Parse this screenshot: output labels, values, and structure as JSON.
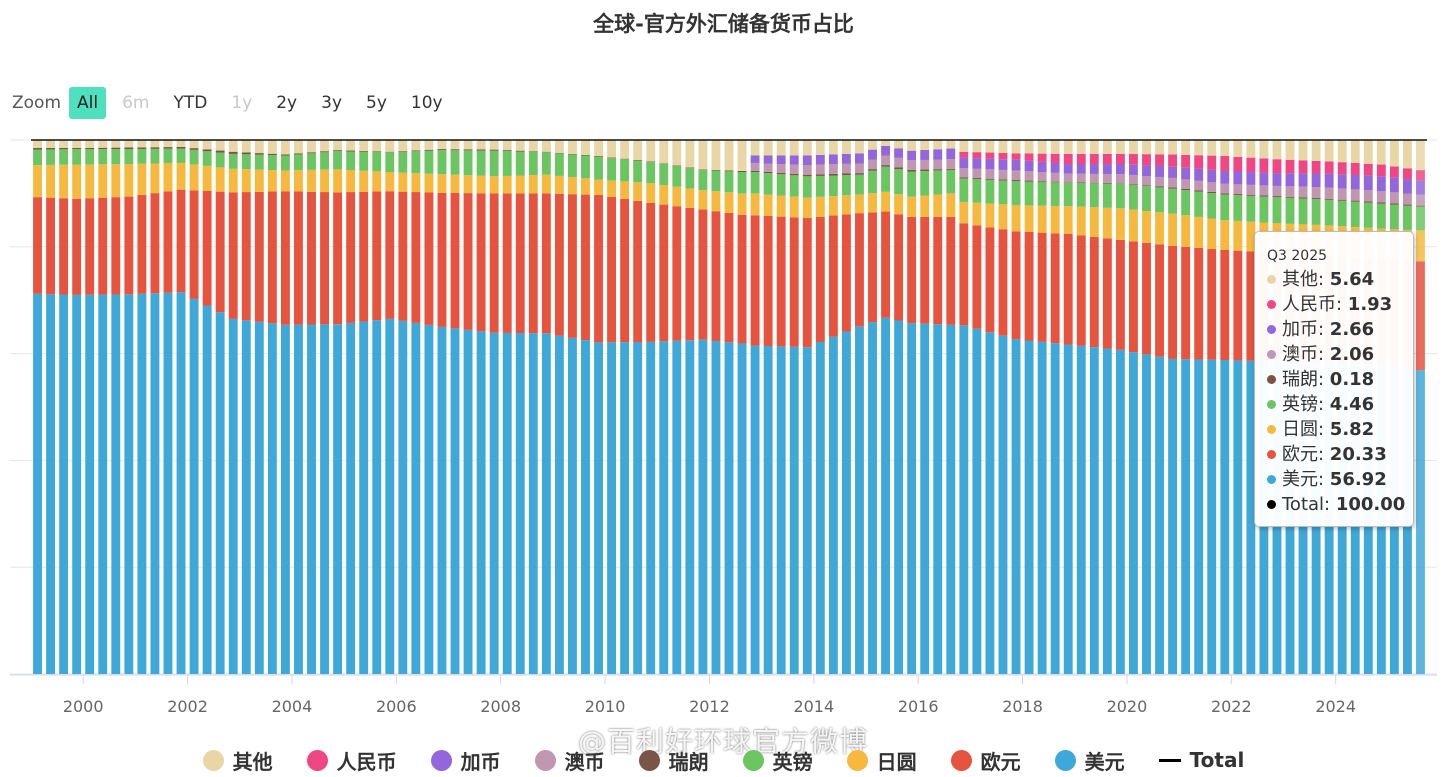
{
  "zoom": {
    "label": "Zoom",
    "buttons": [
      {
        "label": "All",
        "state": "active"
      },
      {
        "label": "6m",
        "state": "disabled"
      },
      {
        "label": "YTD",
        "state": "normal"
      },
      {
        "label": "1y",
        "state": "disabled"
      },
      {
        "label": "2y",
        "state": "normal"
      },
      {
        "label": "3y",
        "state": "normal"
      },
      {
        "label": "5y",
        "state": "normal"
      },
      {
        "label": "10y",
        "state": "normal"
      }
    ]
  },
  "tooltip": {
    "header": "Q3 2025",
    "rows": [
      {
        "name": "其他",
        "value": "5.64",
        "color": "#e8d6a6"
      },
      {
        "name": "人民币",
        "value": "1.93",
        "color": "#ee4783"
      },
      {
        "name": "加币",
        "value": "2.66",
        "color": "#9466db"
      },
      {
        "name": "澳币",
        "value": "2.06",
        "color": "#c096b0"
      },
      {
        "name": "瑞朗",
        "value": "0.18",
        "color": "#7a5446"
      },
      {
        "name": "英镑",
        "value": "4.46",
        "color": "#6bc662"
      },
      {
        "name": "日圆",
        "value": "5.82",
        "color": "#f6b93e"
      },
      {
        "name": "欧元",
        "value": "20.33",
        "color": "#e6533e"
      },
      {
        "name": "美元",
        "value": "56.92",
        "color": "#3ea8d8"
      },
      {
        "name": "Total",
        "value": "100.00",
        "color": "#000000"
      }
    ]
  },
  "legend": [
    {
      "name": "其他",
      "color": "#e8d6a6",
      "kind": "dot"
    },
    {
      "name": "人民币",
      "color": "#ee4783",
      "kind": "dot"
    },
    {
      "name": "加币",
      "color": "#9466db",
      "kind": "dot"
    },
    {
      "name": "澳币",
      "color": "#c096b0",
      "kind": "dot"
    },
    {
      "name": "瑞朗",
      "color": "#7a5446",
      "kind": "dot"
    },
    {
      "name": "英镑",
      "color": "#6bc662",
      "kind": "dot"
    },
    {
      "name": "日圆",
      "color": "#f6b93e",
      "kind": "dot"
    },
    {
      "name": "欧元",
      "color": "#e6533e",
      "kind": "dot"
    },
    {
      "name": "美元",
      "color": "#3ea8d8",
      "kind": "dot"
    },
    {
      "name": "Total",
      "color": "#000000",
      "kind": "line"
    }
  ],
  "watermark": "@百利好环球官方微博",
  "chart_data": {
    "type": "bar",
    "stacked": true,
    "title": "全球-官方外汇储备货币占比",
    "xlabel": "",
    "ylabel": "",
    "ylim": [
      0,
      100
    ],
    "x_range": [
      "Q1 1999",
      "Q3 2025"
    ],
    "x_ticks": [
      "2000",
      "2002",
      "2004",
      "2006",
      "2008",
      "2010",
      "2012",
      "2014",
      "2016",
      "2018",
      "2020",
      "2022",
      "2024"
    ],
    "grid": true,
    "legend_position": "bottom",
    "highlighted_point": "Q3 2025",
    "total_series": {
      "name": "Total",
      "value": 100
    },
    "series_order_bottom_to_top": [
      "美元",
      "欧元",
      "日圆",
      "英镑",
      "瑞朗",
      "澳币",
      "加币",
      "人民币",
      "其他"
    ],
    "series_colors": {
      "美元": "#3ea8d8",
      "欧元": "#e6533e",
      "日圆": "#f6b93e",
      "英镑": "#6bc662",
      "瑞朗": "#7a5446",
      "澳币": "#c096b0",
      "加币": "#9466db",
      "人民币": "#ee4783",
      "其他": "#e8d6a6"
    },
    "keyframes": [
      {
        "t": "Q1 1999",
        "美元": 71.2,
        "欧元": 18.1,
        "日圆": 6.0,
        "英镑": 2.9,
        "瑞朗": 0.3,
        "澳币": 0,
        "加币": 0,
        "人民币": 0,
        "其他": 1.5
      },
      {
        "t": "Q4 1999",
        "美元": 71.0,
        "欧元": 18.0,
        "日圆": 6.4,
        "英镑": 2.9,
        "瑞朗": 0.2,
        "澳币": 0,
        "加币": 0,
        "人民币": 0,
        "其他": 1.5
      },
      {
        "t": "Q4 2000",
        "美元": 71.1,
        "欧元": 18.3,
        "日圆": 6.1,
        "英镑": 2.8,
        "瑞朗": 0.3,
        "澳币": 0,
        "加币": 0,
        "人民币": 0,
        "其他": 1.4
      },
      {
        "t": "Q4 2001",
        "美元": 71.5,
        "欧元": 19.2,
        "日圆": 5.0,
        "英镑": 2.7,
        "瑞朗": 0.3,
        "澳币": 0,
        "加币": 0,
        "人民币": 0,
        "其他": 1.3
      },
      {
        "t": "Q4 2002",
        "美元": 66.5,
        "欧元": 23.7,
        "日圆": 4.4,
        "英镑": 2.8,
        "瑞朗": 0.4,
        "澳币": 0,
        "加币": 0,
        "人民币": 0,
        "其他": 2.2
      },
      {
        "t": "Q4 2003",
        "美元": 65.4,
        "欧元": 25.0,
        "日圆": 3.9,
        "英镑": 2.8,
        "瑞朗": 0.2,
        "澳币": 0,
        "加币": 0,
        "人民币": 0,
        "其他": 2.7
      },
      {
        "t": "Q4 2004",
        "美元": 65.5,
        "欧元": 24.7,
        "日圆": 4.3,
        "英镑": 3.4,
        "瑞朗": 0.2,
        "澳币": 0,
        "加币": 0,
        "人民币": 0,
        "其他": 1.9
      },
      {
        "t": "Q4 2005",
        "美元": 66.5,
        "欧元": 23.9,
        "日圆": 3.6,
        "英镑": 3.7,
        "瑞朗": 0.1,
        "澳币": 0,
        "加币": 0,
        "人民币": 0,
        "其他": 2.2
      },
      {
        "t": "Q4 2006",
        "美元": 65.0,
        "欧元": 25.1,
        "日圆": 3.5,
        "英镑": 4.5,
        "瑞朗": 0.2,
        "澳币": 0,
        "加币": 0,
        "人民币": 0,
        "其他": 1.7
      },
      {
        "t": "Q4 2007",
        "美元": 63.9,
        "欧元": 26.1,
        "日圆": 3.2,
        "英镑": 4.8,
        "瑞朗": 0.2,
        "澳币": 0,
        "加币": 0,
        "人民币": 0,
        "其他": 1.8
      },
      {
        "t": "Q4 2008",
        "美元": 63.8,
        "欧元": 26.2,
        "日圆": 3.5,
        "英镑": 4.2,
        "瑞朗": 0.1,
        "澳币": 0,
        "加币": 0,
        "人民币": 0,
        "其他": 2.2
      },
      {
        "t": "Q4 2009",
        "美元": 62.1,
        "欧元": 27.6,
        "日圆": 2.9,
        "英镑": 4.3,
        "瑞朗": 0.1,
        "澳币": 0,
        "加币": 0,
        "人民币": 0,
        "其他": 3.0
      },
      {
        "t": "Q4 2010",
        "美元": 62.2,
        "欧元": 26.0,
        "日圆": 3.7,
        "英镑": 4.0,
        "瑞朗": 0.1,
        "澳币": 0,
        "加币": 0,
        "人民币": 0,
        "其他": 4.0
      },
      {
        "t": "Q4 2011",
        "美元": 62.6,
        "欧元": 24.4,
        "日圆": 3.6,
        "英镑": 3.8,
        "瑞朗": 0.1,
        "澳币": 0,
        "加币": 0,
        "人民币": 0,
        "其他": 5.5
      },
      {
        "t": "Q3 2012",
        "美元": 61.9,
        "欧元": 24.1,
        "日圆": 4.0,
        "英镑": 4.0,
        "瑞朗": 0.2,
        "澳币": 0,
        "加币": 0,
        "人民币": 0,
        "其他": 5.8
      },
      {
        "t": "Q4 2012",
        "美元": 61.5,
        "欧元": 24.4,
        "日圆": 4.1,
        "英镑": 4.0,
        "瑞朗": 0.2,
        "澳币": 1.5,
        "加币": 1.4,
        "人民币": 0,
        "其他": 2.9
      },
      {
        "t": "Q4 2013",
        "美元": 61.2,
        "欧元": 24.2,
        "日圆": 3.8,
        "英镑": 4.0,
        "瑞朗": 0.3,
        "澳币": 1.8,
        "加币": 1.8,
        "人民币": 0,
        "其他": 2.9
      },
      {
        "t": "Q4 2014",
        "美元": 65.1,
        "欧元": 21.2,
        "日圆": 3.5,
        "英镑": 3.7,
        "瑞朗": 0.3,
        "澳币": 1.8,
        "加币": 1.9,
        "人民币": 0,
        "其他": 2.5
      },
      {
        "t": "Q2 2015",
        "美元": 66.7,
        "欧元": 19.9,
        "日圆": 3.7,
        "英镑": 4.7,
        "瑞朗": 0.3,
        "澳币": 1.8,
        "加币": 1.8,
        "人民币": 0,
        "其他": 1.1
      },
      {
        "t": "Q4 2015",
        "美元": 65.7,
        "欧元": 19.9,
        "日圆": 3.8,
        "英镑": 4.7,
        "瑞朗": 0.3,
        "澳币": 1.8,
        "加币": 1.8,
        "人民币": 0,
        "其他": 2.0
      },
      {
        "t": "Q3 2016",
        "美元": 65.4,
        "欧元": 20.2,
        "日圆": 4.4,
        "英镑": 4.4,
        "瑞朗": 0.2,
        "澳币": 1.8,
        "加币": 2.0,
        "人民币": 0,
        "其他": 1.6
      },
      {
        "t": "Q4 2016",
        "美元": 65.3,
        "欧元": 19.1,
        "日圆": 4.0,
        "英镑": 4.4,
        "瑞朗": 0.2,
        "澳币": 1.7,
        "加币": 2.0,
        "人民币": 1.1,
        "其他": 2.2
      },
      {
        "t": "Q4 2017",
        "美元": 62.7,
        "欧元": 20.2,
        "日圆": 4.9,
        "英镑": 4.5,
        "瑞朗": 0.2,
        "澳币": 1.8,
        "加币": 2.0,
        "人民币": 1.2,
        "其他": 2.5
      },
      {
        "t": "Q4 2018",
        "美元": 61.7,
        "欧元": 20.7,
        "日圆": 5.2,
        "英镑": 4.4,
        "瑞朗": 0.1,
        "澳币": 1.6,
        "加币": 1.8,
        "人民币": 1.9,
        "其他": 2.6
      },
      {
        "t": "Q4 2019",
        "美元": 60.7,
        "欧元": 20.6,
        "日圆": 5.9,
        "英镑": 4.6,
        "瑞朗": 0.1,
        "澳币": 1.7,
        "加币": 1.9,
        "人民币": 1.9,
        "其他": 2.6
      },
      {
        "t": "Q4 2020",
        "美元": 59.0,
        "欧元": 21.2,
        "日圆": 6.0,
        "英镑": 4.7,
        "瑞朗": 0.2,
        "澳币": 1.8,
        "加币": 2.1,
        "人民币": 2.3,
        "其他": 2.7
      },
      {
        "t": "Q4 2021",
        "美元": 58.8,
        "欧元": 20.6,
        "日圆": 5.6,
        "英镑": 4.8,
        "瑞朗": 0.2,
        "澳币": 1.8,
        "加币": 2.4,
        "人民币": 2.8,
        "其他": 3.0
      },
      {
        "t": "Q4 2022",
        "美元": 58.5,
        "欧元": 20.4,
        "日圆": 5.5,
        "英镑": 4.9,
        "瑞朗": 0.2,
        "澳币": 1.9,
        "加币": 2.4,
        "人民币": 2.6,
        "其他": 3.6
      },
      {
        "t": "Q4 2023",
        "美元": 58.4,
        "欧元": 19.9,
        "日圆": 5.7,
        "英镑": 4.8,
        "瑞朗": 0.2,
        "澳币": 2.1,
        "加币": 2.6,
        "人民币": 2.3,
        "其他": 4.0
      },
      {
        "t": "Q4 2024",
        "美元": 57.8,
        "欧元": 19.8,
        "日圆": 5.8,
        "英镑": 4.7,
        "瑞朗": 0.2,
        "澳币": 2.1,
        "加币": 2.8,
        "人民币": 2.2,
        "其他": 4.6
      },
      {
        "t": "Q3 2025",
        "美元": 56.92,
        "欧元": 20.33,
        "日圆": 5.82,
        "英镑": 4.46,
        "瑞朗": 0.18,
        "澳币": 2.06,
        "加币": 2.66,
        "人民币": 1.93,
        "其他": 5.64
      }
    ]
  }
}
